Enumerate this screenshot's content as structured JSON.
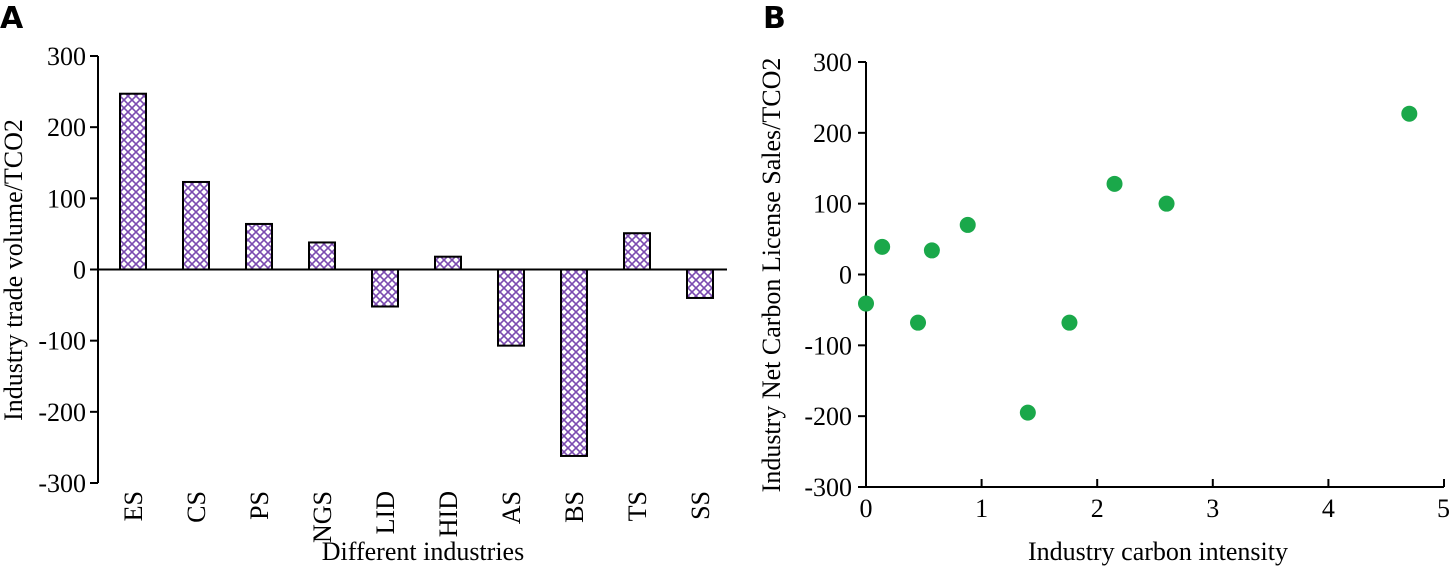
{
  "chart_data": [
    {
      "panel": "A",
      "type": "bar",
      "xlabel": "Different industries",
      "ylabel": "Industry trade volume/TCO2",
      "ylim": [
        -300,
        300
      ],
      "yticks": [
        300,
        200,
        100,
        0,
        -100,
        -200,
        -300
      ],
      "categories": [
        "ES",
        "CS",
        "PS",
        "NGS",
        "LID",
        "HID",
        "AS",
        "BS",
        "TS",
        "SS"
      ],
      "values": [
        247,
        123,
        64,
        38,
        -52,
        18,
        -107,
        -262,
        51,
        -40
      ],
      "bar_fill_color": "#7b4bb0",
      "grid": false,
      "legend": "none"
    },
    {
      "panel": "B",
      "type": "scatter",
      "xlabel": "Industry carbon intensity",
      "ylabel": "Industry Net Carbon License Sales/TCO2",
      "xlim": [
        0,
        5
      ],
      "ylim": [
        -300,
        300
      ],
      "xticks": [
        0,
        1,
        2,
        3,
        4,
        5
      ],
      "yticks": [
        300,
        200,
        100,
        0,
        -100,
        -200,
        -300
      ],
      "points": [
        {
          "x": 0.0,
          "y": -41
        },
        {
          "x": 0.14,
          "y": 39
        },
        {
          "x": 0.45,
          "y": -68
        },
        {
          "x": 0.57,
          "y": 34
        },
        {
          "x": 0.88,
          "y": 70
        },
        {
          "x": 1.4,
          "y": -195
        },
        {
          "x": 1.76,
          "y": -68
        },
        {
          "x": 2.15,
          "y": 128
        },
        {
          "x": 2.6,
          "y": 100
        },
        {
          "x": 4.7,
          "y": 227
        }
      ],
      "point_color": "#1aa84a",
      "grid": false,
      "legend": "none"
    }
  ]
}
